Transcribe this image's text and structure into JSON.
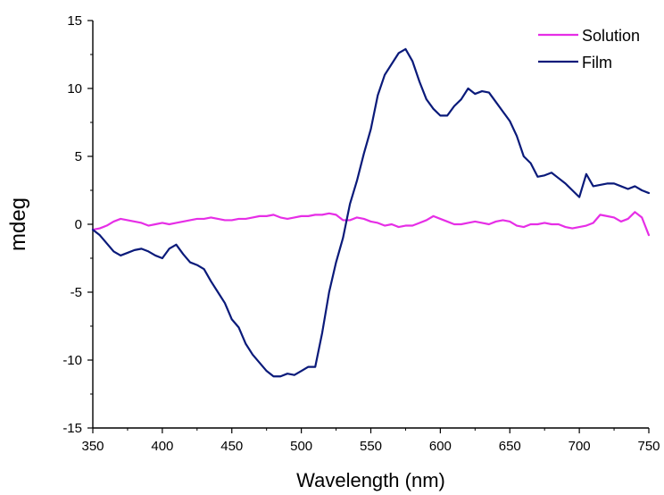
{
  "chart_data": {
    "type": "line",
    "xlabel": "Wavelength (nm)",
    "ylabel": "mdeg",
    "xlim": [
      350,
      750
    ],
    "ylim": [
      -15,
      15
    ],
    "x_ticks": [
      350,
      400,
      450,
      500,
      550,
      600,
      650,
      700,
      750
    ],
    "y_ticks": [
      -15,
      -10,
      -5,
      0,
      5,
      10,
      15
    ],
    "grid": false,
    "legend_position": "top-right",
    "series": [
      {
        "name": "Solution",
        "color": "#e62ee6",
        "points": [
          [
            350,
            -0.4
          ],
          [
            355,
            -0.3
          ],
          [
            360,
            -0.1
          ],
          [
            365,
            0.2
          ],
          [
            370,
            0.4
          ],
          [
            375,
            0.3
          ],
          [
            380,
            0.2
          ],
          [
            385,
            0.1
          ],
          [
            390,
            -0.1
          ],
          [
            395,
            0.0
          ],
          [
            400,
            0.1
          ],
          [
            405,
            0.0
          ],
          [
            410,
            0.1
          ],
          [
            415,
            0.2
          ],
          [
            420,
            0.3
          ],
          [
            425,
            0.4
          ],
          [
            430,
            0.4
          ],
          [
            435,
            0.5
          ],
          [
            440,
            0.4
          ],
          [
            445,
            0.3
          ],
          [
            450,
            0.3
          ],
          [
            455,
            0.4
          ],
          [
            460,
            0.4
          ],
          [
            465,
            0.5
          ],
          [
            470,
            0.6
          ],
          [
            475,
            0.6
          ],
          [
            480,
            0.7
          ],
          [
            485,
            0.5
          ],
          [
            490,
            0.4
          ],
          [
            495,
            0.5
          ],
          [
            500,
            0.6
          ],
          [
            505,
            0.6
          ],
          [
            510,
            0.7
          ],
          [
            515,
            0.7
          ],
          [
            520,
            0.8
          ],
          [
            525,
            0.7
          ],
          [
            530,
            0.3
          ],
          [
            535,
            0.3
          ],
          [
            540,
            0.5
          ],
          [
            545,
            0.4
          ],
          [
            550,
            0.2
          ],
          [
            555,
            0.1
          ],
          [
            560,
            -0.1
          ],
          [
            565,
            0.0
          ],
          [
            570,
            -0.2
          ],
          [
            575,
            -0.1
          ],
          [
            580,
            -0.1
          ],
          [
            585,
            0.1
          ],
          [
            590,
            0.3
          ],
          [
            595,
            0.6
          ],
          [
            600,
            0.4
          ],
          [
            605,
            0.2
          ],
          [
            610,
            0.0
          ],
          [
            615,
            0.0
          ],
          [
            620,
            0.1
          ],
          [
            625,
            0.2
          ],
          [
            630,
            0.1
          ],
          [
            635,
            0.0
          ],
          [
            640,
            0.2
          ],
          [
            645,
            0.3
          ],
          [
            650,
            0.2
          ],
          [
            655,
            -0.1
          ],
          [
            660,
            -0.2
          ],
          [
            665,
            0.0
          ],
          [
            670,
            0.0
          ],
          [
            675,
            0.1
          ],
          [
            680,
            0.0
          ],
          [
            685,
            0.0
          ],
          [
            690,
            -0.2
          ],
          [
            695,
            -0.3
          ],
          [
            700,
            -0.2
          ],
          [
            705,
            -0.1
          ],
          [
            710,
            0.1
          ],
          [
            715,
            0.7
          ],
          [
            720,
            0.6
          ],
          [
            725,
            0.5
          ],
          [
            730,
            0.2
          ],
          [
            735,
            0.4
          ],
          [
            740,
            0.9
          ],
          [
            745,
            0.5
          ],
          [
            750,
            -0.8
          ]
        ]
      },
      {
        "name": "Film",
        "color": "#0a1a7a",
        "points": [
          [
            350,
            -0.4
          ],
          [
            355,
            -0.8
          ],
          [
            360,
            -1.4
          ],
          [
            365,
            -2.0
          ],
          [
            370,
            -2.3
          ],
          [
            375,
            -2.1
          ],
          [
            380,
            -1.9
          ],
          [
            385,
            -1.8
          ],
          [
            390,
            -2.0
          ],
          [
            395,
            -2.3
          ],
          [
            400,
            -2.5
          ],
          [
            405,
            -1.8
          ],
          [
            410,
            -1.5
          ],
          [
            415,
            -2.2
          ],
          [
            420,
            -2.8
          ],
          [
            425,
            -3.0
          ],
          [
            430,
            -3.3
          ],
          [
            435,
            -4.2
          ],
          [
            440,
            -5.0
          ],
          [
            445,
            -5.8
          ],
          [
            450,
            -7.0
          ],
          [
            455,
            -7.6
          ],
          [
            460,
            -8.8
          ],
          [
            465,
            -9.6
          ],
          [
            470,
            -10.2
          ],
          [
            475,
            -10.8
          ],
          [
            480,
            -11.2
          ],
          [
            485,
            -11.2
          ],
          [
            490,
            -11.0
          ],
          [
            495,
            -11.1
          ],
          [
            500,
            -10.8
          ],
          [
            505,
            -10.5
          ],
          [
            510,
            -10.5
          ],
          [
            515,
            -8.0
          ],
          [
            520,
            -5.0
          ],
          [
            525,
            -2.8
          ],
          [
            530,
            -1.0
          ],
          [
            535,
            1.5
          ],
          [
            540,
            3.2
          ],
          [
            545,
            5.2
          ],
          [
            550,
            7.0
          ],
          [
            555,
            9.5
          ],
          [
            560,
            11.0
          ],
          [
            565,
            11.8
          ],
          [
            570,
            12.6
          ],
          [
            575,
            12.9
          ],
          [
            580,
            12.0
          ],
          [
            585,
            10.5
          ],
          [
            590,
            9.2
          ],
          [
            595,
            8.5
          ],
          [
            600,
            8.0
          ],
          [
            605,
            8.0
          ],
          [
            610,
            8.7
          ],
          [
            615,
            9.2
          ],
          [
            620,
            10.0
          ],
          [
            625,
            9.6
          ],
          [
            630,
            9.8
          ],
          [
            635,
            9.7
          ],
          [
            640,
            9.0
          ],
          [
            645,
            8.3
          ],
          [
            650,
            7.6
          ],
          [
            655,
            6.5
          ],
          [
            660,
            5.0
          ],
          [
            665,
            4.5
          ],
          [
            670,
            3.5
          ],
          [
            675,
            3.6
          ],
          [
            680,
            3.8
          ],
          [
            685,
            3.4
          ],
          [
            690,
            3.0
          ],
          [
            695,
            2.5
          ],
          [
            700,
            2.0
          ],
          [
            705,
            3.7
          ],
          [
            710,
            2.8
          ],
          [
            715,
            2.9
          ],
          [
            720,
            3.0
          ],
          [
            725,
            3.0
          ],
          [
            730,
            2.8
          ],
          [
            735,
            2.6
          ],
          [
            740,
            2.8
          ],
          [
            745,
            2.5
          ],
          [
            750,
            2.3
          ]
        ]
      }
    ]
  }
}
